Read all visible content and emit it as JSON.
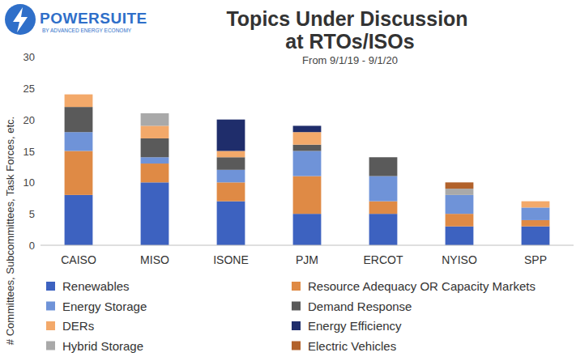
{
  "logo": {
    "title": "POWERSUITE",
    "subtitle": "BY ADVANCED ENERGY ECONOMY"
  },
  "chart_data": {
    "type": "bar",
    "title": "Topics Under Discussion at RTOs/ISOs",
    "subtitle": "From 9/1/19 - 9/1/20",
    "y_label": "# Committees, Subcommittees, Task Forces, etc.",
    "categories": [
      "CAISO",
      "MISO",
      "ISONE",
      "PJM",
      "ERCOT",
      "NYISO",
      "SPP"
    ],
    "stacked": true,
    "grid": false,
    "legend": "bottom",
    "ylim": [
      0,
      30
    ],
    "yticks": [
      0,
      5,
      10,
      15,
      20,
      25,
      30
    ],
    "series": [
      {
        "name": "Renewables",
        "color": "#3d62c0",
        "values": [
          8,
          10,
          7,
          5,
          5,
          3,
          3
        ]
      },
      {
        "name": "Resource Adequacy OR Capacity Markets",
        "color": "#df8a45",
        "values": [
          7,
          3,
          3,
          6,
          2,
          2,
          1
        ]
      },
      {
        "name": "Energy Storage",
        "color": "#6f93d8",
        "values": [
          3,
          1,
          2,
          4,
          4,
          3,
          2
        ]
      },
      {
        "name": "Demand Response",
        "color": "#5a5a5a",
        "values": [
          4,
          3,
          2,
          1,
          3,
          0,
          0
        ]
      },
      {
        "name": "DERs",
        "color": "#f3a96a",
        "values": [
          2,
          2,
          1,
          2,
          0,
          0,
          1
        ]
      },
      {
        "name": "Energy Efficiency",
        "color": "#1f2d6b",
        "values": [
          0,
          0,
          5,
          1,
          0,
          0,
          0
        ]
      },
      {
        "name": "Hybrid Storage",
        "color": "#a9a9a9",
        "values": [
          0,
          2,
          0,
          0,
          0,
          1,
          0
        ]
      },
      {
        "name": "Electric Vehicles",
        "color": "#b2622b",
        "values": [
          0,
          0,
          0,
          0,
          0,
          1,
          0
        ]
      }
    ]
  }
}
